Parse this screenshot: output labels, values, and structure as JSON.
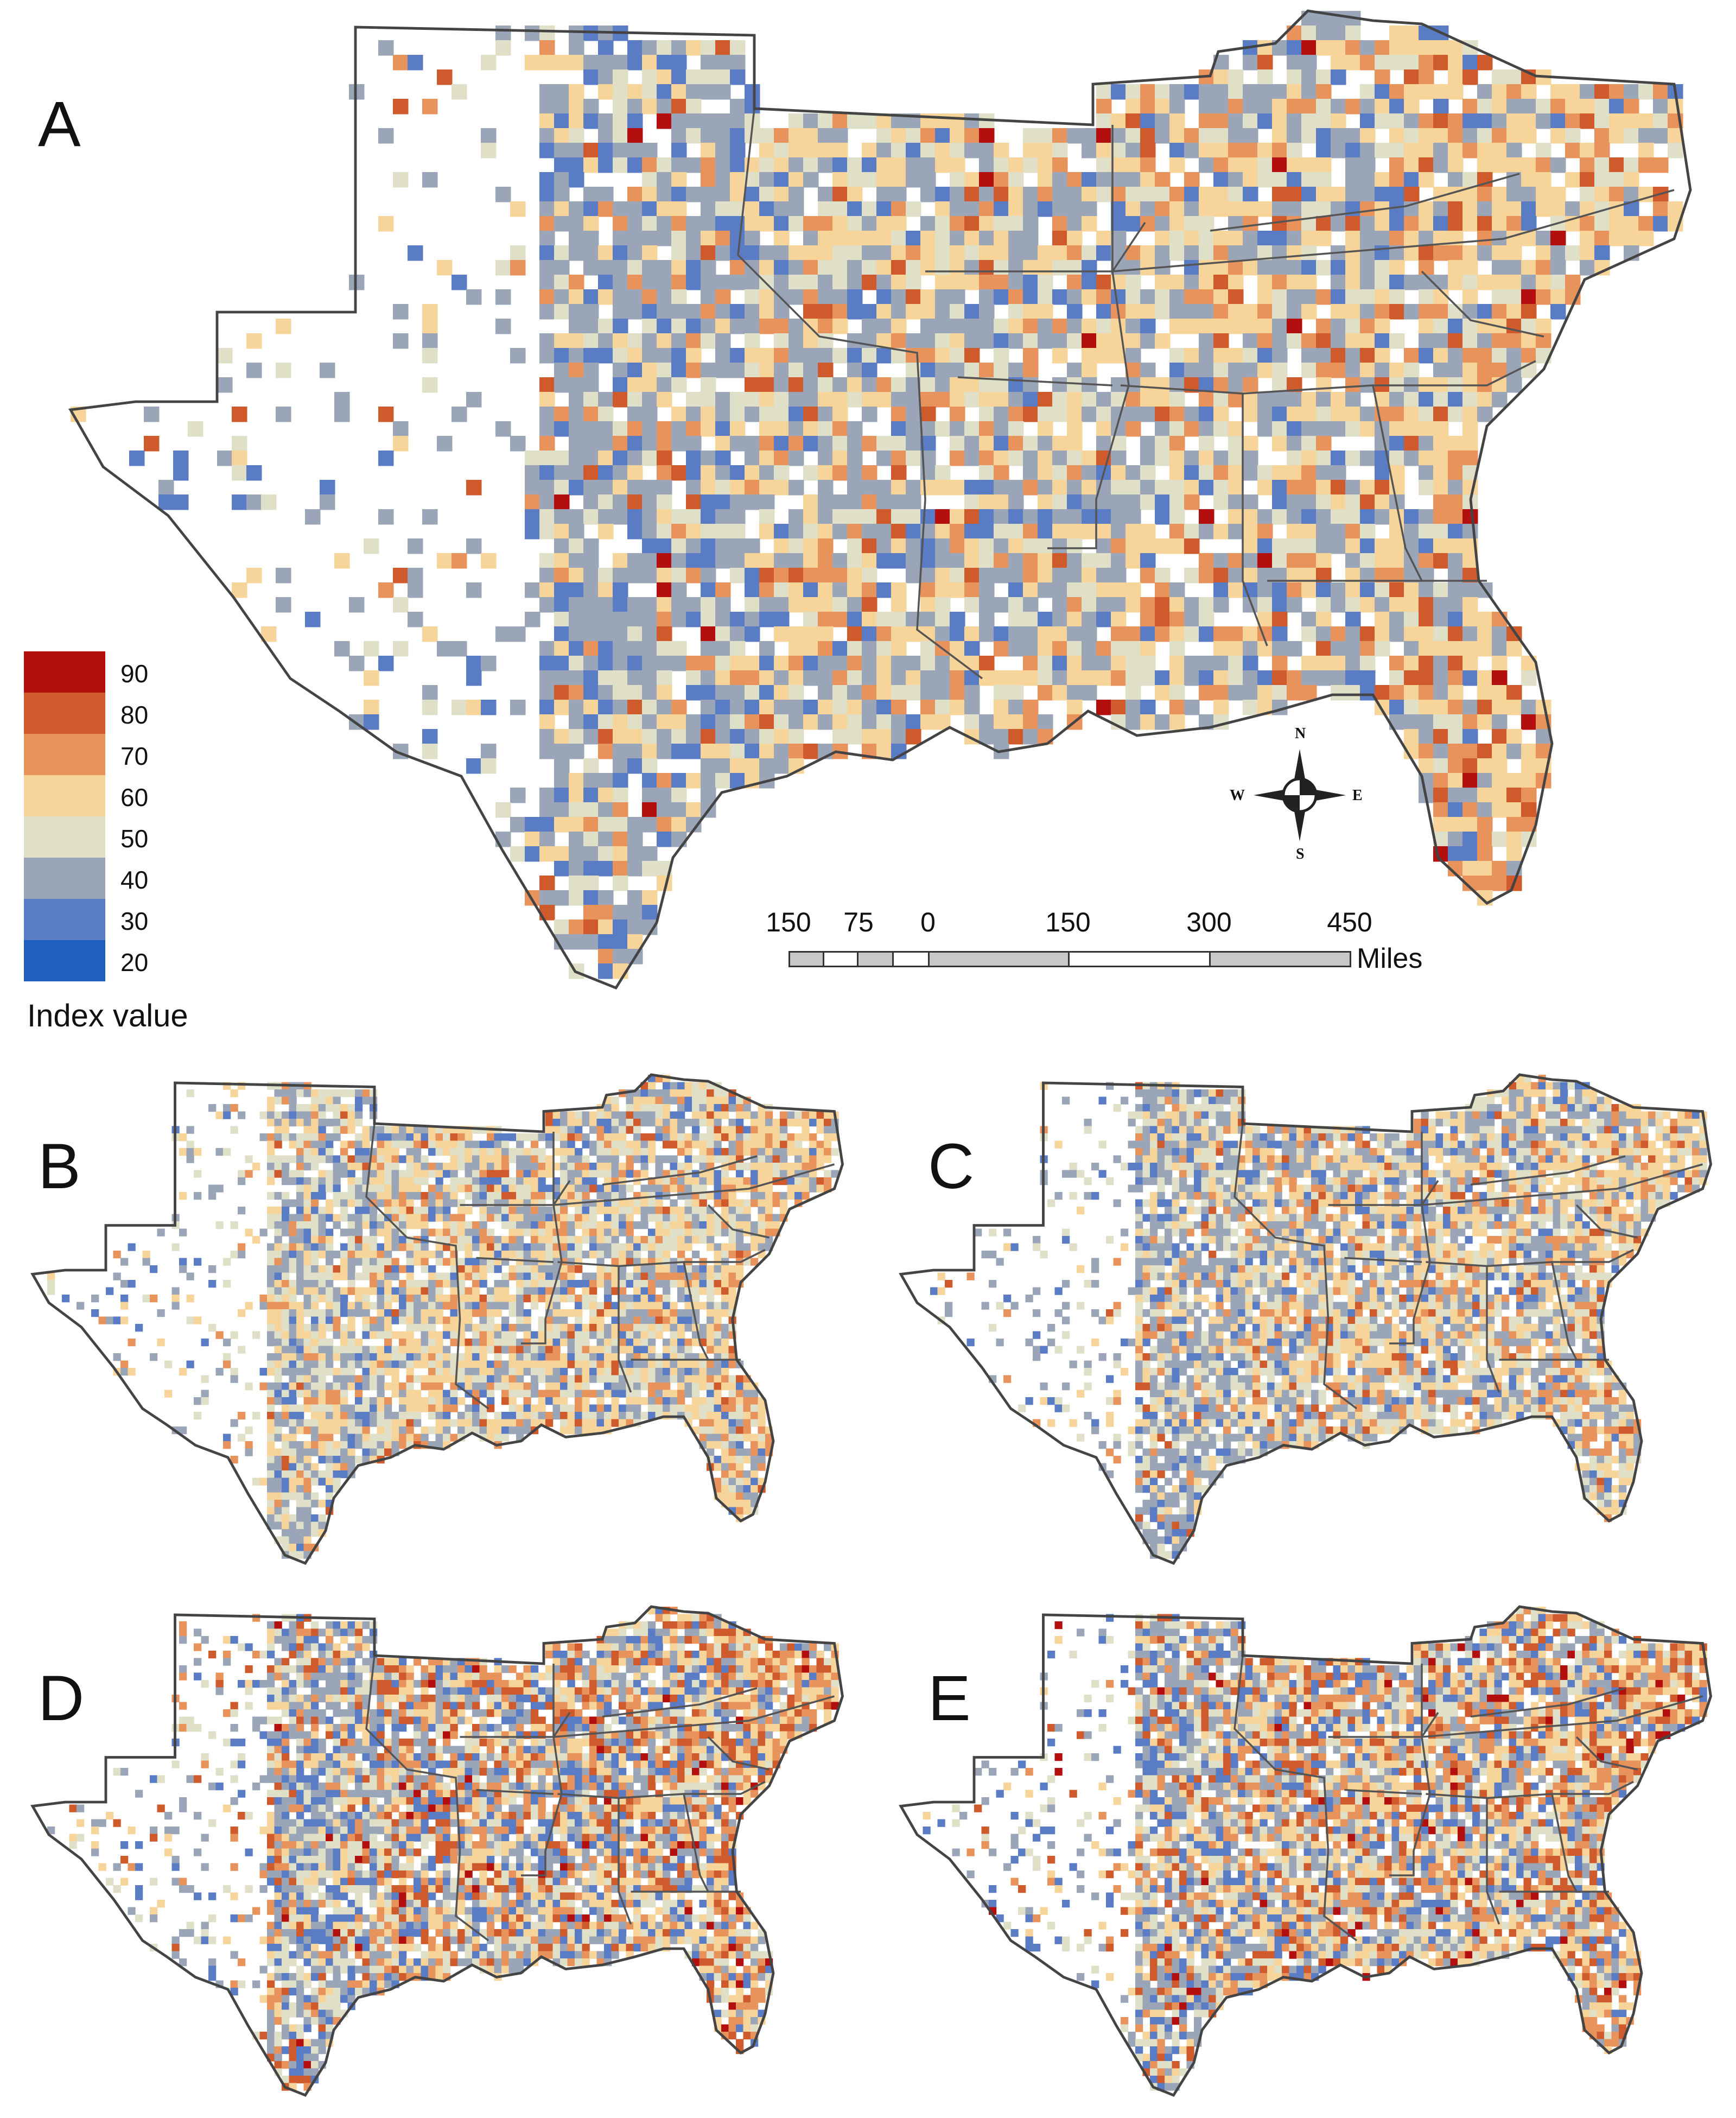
{
  "panels": [
    {
      "id": "A",
      "label": "A",
      "palette_weights": [
        0.1,
        0.28,
        0.18,
        0.26,
        0.12,
        0.05,
        0.01
      ]
    },
    {
      "id": "B",
      "label": "B",
      "palette_weights": [
        0.08,
        0.24,
        0.22,
        0.3,
        0.12,
        0.04,
        0.0
      ]
    },
    {
      "id": "C",
      "label": "C",
      "palette_weights": [
        0.09,
        0.27,
        0.21,
        0.28,
        0.11,
        0.04,
        0.0
      ]
    },
    {
      "id": "D",
      "label": "D",
      "palette_weights": [
        0.14,
        0.2,
        0.14,
        0.22,
        0.16,
        0.12,
        0.02
      ]
    },
    {
      "id": "E",
      "label": "E",
      "palette_weights": [
        0.12,
        0.2,
        0.15,
        0.23,
        0.16,
        0.12,
        0.02
      ]
    }
  ],
  "legend": {
    "title": "Index value",
    "classes": [
      {
        "value": "90",
        "color": "#b40f0f"
      },
      {
        "value": "80",
        "color": "#cf5a2c"
      },
      {
        "value": "70",
        "color": "#e8925c"
      },
      {
        "value": "60",
        "color": "#f7d59a"
      },
      {
        "value": "50",
        "color": "#dfe0c7"
      },
      {
        "value": "40",
        "color": "#9aa6b8"
      },
      {
        "value": "30",
        "color": "#5a7cc4"
      },
      {
        "value": "20",
        "color": "#1f5fbd"
      }
    ]
  },
  "scalebar": {
    "ticks": [
      "150",
      "75",
      "0",
      "150",
      "300",
      "450"
    ],
    "unit": "Miles"
  },
  "compass": {
    "n": "N",
    "s": "S",
    "e": "E",
    "w": "W"
  },
  "colors": {
    "outline": "#555555",
    "coast": "#444444"
  }
}
